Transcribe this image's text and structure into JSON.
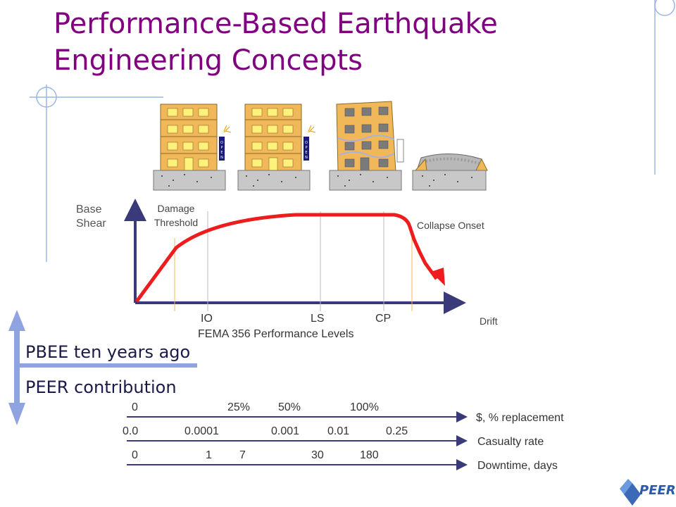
{
  "title": "Performance-Based Earthquake Engineering Concepts",
  "curve": {
    "y_label": "Base Shear",
    "x_label": "Drift",
    "damage_threshold": "Damage Threshold",
    "collapse_onset": "Collapse Onset",
    "levels": [
      "IO",
      "LS",
      "CP"
    ],
    "levels_caption": "FEMA 356 Performance Levels"
  },
  "buildings": [
    {
      "sign": "OPEN"
    },
    {
      "sign": "OPEN"
    },
    {
      "sign": ""
    },
    {
      "sign": ""
    }
  ],
  "history": {
    "past": "PBEE ten years ago",
    "peer": "PEER contribution"
  },
  "scales": [
    {
      "ticks": [
        "0",
        "25%",
        "50%",
        "100%"
      ],
      "label": "$, % replacement"
    },
    {
      "ticks": [
        "0.0",
        "0.0001",
        "0.001",
        "0.01",
        "0.25"
      ],
      "label": "Casualty rate"
    },
    {
      "ticks": [
        "0",
        "1",
        "7",
        "30",
        "180"
      ],
      "label": "Downtime, days"
    }
  ],
  "logo": {
    "text": "PEER"
  },
  "colors": {
    "title": "#800080",
    "axis": "#3a3a7a",
    "curve": "#ee1c1c",
    "arrow": "#8fa3e0",
    "building": "#f0b858",
    "window": "#fff27a"
  }
}
